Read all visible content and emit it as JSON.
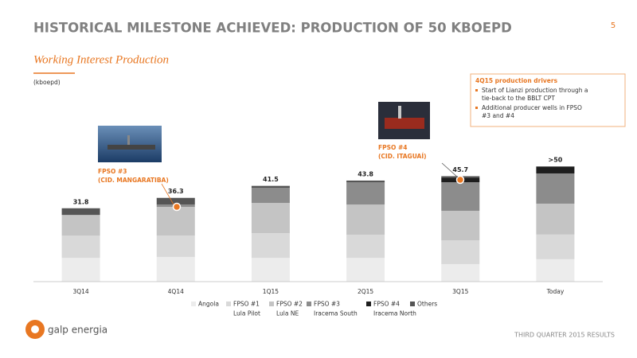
{
  "page_number": "5",
  "title": "HISTORICAL MILESTONE ACHIEVED: PRODUCTION OF 50 KBOEPD",
  "footer": "THIRD QUARTER 2015 RESULTS",
  "logo": "galp energia",
  "drivers": {
    "title": "4Q15 production drivers",
    "bullets": [
      [
        "Start of Lianzi production through a",
        "tie-back to the BBLT CPT"
      ],
      [
        "Additional producer wells in FPSO",
        "#3 and #4"
      ]
    ]
  },
  "chart_data": {
    "type": "stacked_bar",
    "subtitle": "Working Interest Production",
    "unit_label": "(kboepd)",
    "categories": [
      "3Q14",
      "4Q14",
      "1Q15",
      "2Q15",
      "3Q15",
      "Today"
    ],
    "series": [
      {
        "name": "Angola",
        "color": "#ececec",
        "values": [
          10.3,
          10.7,
          10.3,
          10.3,
          7.6,
          9.7
        ]
      },
      {
        "name": "FPSO #1",
        "subname": "Lula Pilot",
        "color": "#d9d9d9",
        "values": [
          9.6,
          9.3,
          10.7,
          10.0,
          10.3,
          10.7
        ]
      },
      {
        "name": "FPSO #2",
        "subname": "Lula NE",
        "color": "#c4c4c4",
        "values": [
          9.0,
          12.4,
          13.1,
          13.1,
          12.8,
          13.4
        ]
      },
      {
        "name": "FPSO #3",
        "subname": "Iracema South",
        "color": "#8c8c8c",
        "values": [
          0,
          1.0,
          6.5,
          9.6,
          12.4,
          13.1
        ]
      },
      {
        "name": "FPSO #4",
        "subname": "Iracema North",
        "color": "#1e1e1e",
        "values": [
          0,
          0,
          0,
          0,
          2.0,
          2.8
        ]
      },
      {
        "name": "Others",
        "color": "#555555",
        "values": [
          2.9,
          2.9,
          0.9,
          0.8,
          0.6,
          0.3
        ]
      }
    ],
    "totals": [
      31.8,
      36.3,
      41.5,
      43.8,
      45.7,
      50
    ],
    "value_labels": [
      "31.8",
      "36.3",
      "41.5",
      "43.8",
      "45.7",
      ">50"
    ],
    "annotations": [
      {
        "lines": [
          "FPSO #3",
          "(CID. MANGARATIBA)"
        ]
      },
      {
        "lines": [
          "FPSO #4",
          "(CID. ITAGUAÍ)"
        ]
      }
    ]
  }
}
